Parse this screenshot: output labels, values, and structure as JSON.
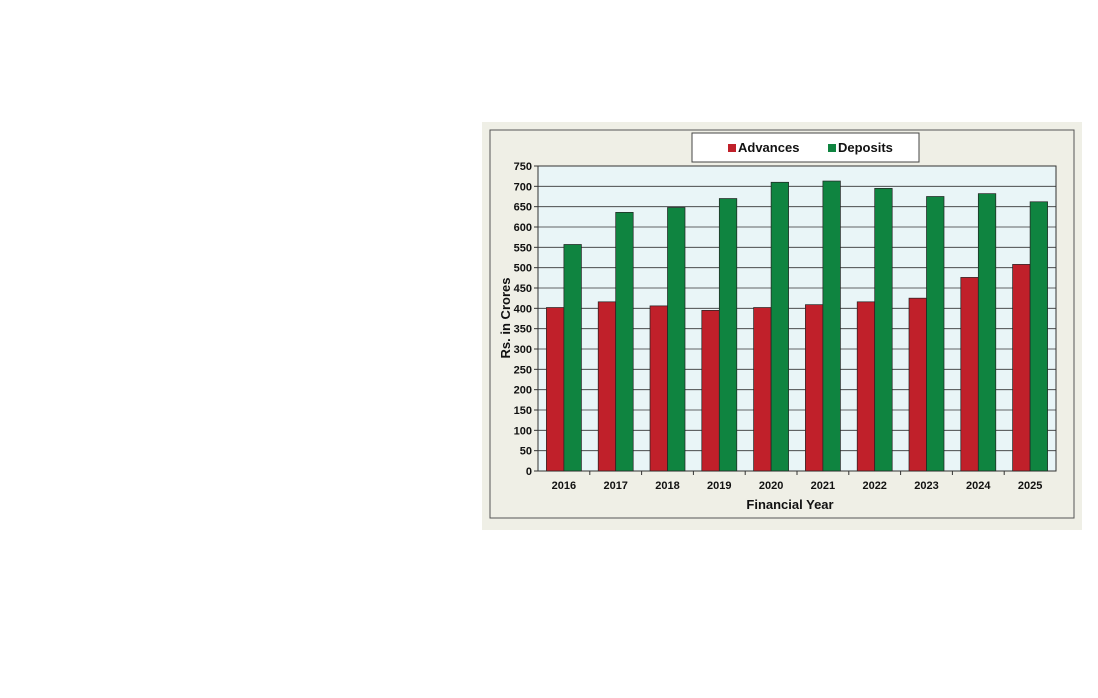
{
  "chart_data": {
    "type": "bar",
    "categories": [
      "2016",
      "2017",
      "2018",
      "2019",
      "2020",
      "2021",
      "2022",
      "2023",
      "2024",
      "2025"
    ],
    "series": [
      {
        "name": "Advances",
        "color": "#c0202a",
        "values": [
          402,
          416,
          406,
          395,
          402,
          409,
          416,
          425,
          476,
          508
        ]
      },
      {
        "name": "Deposits",
        "color": "#0f8440",
        "values": [
          557,
          636,
          648,
          670,
          710,
          713,
          695,
          675,
          682,
          662
        ]
      }
    ],
    "xlabel": "Financial Year",
    "ylabel": "Rs. in Crores",
    "ylim": [
      0,
      750
    ],
    "yticks": [
      0,
      50,
      100,
      150,
      200,
      250,
      300,
      350,
      400,
      450,
      500,
      550,
      600,
      650,
      700,
      750
    ],
    "grid": true,
    "legend_position": "top-center",
    "plot_background": "#e9f5f7"
  }
}
